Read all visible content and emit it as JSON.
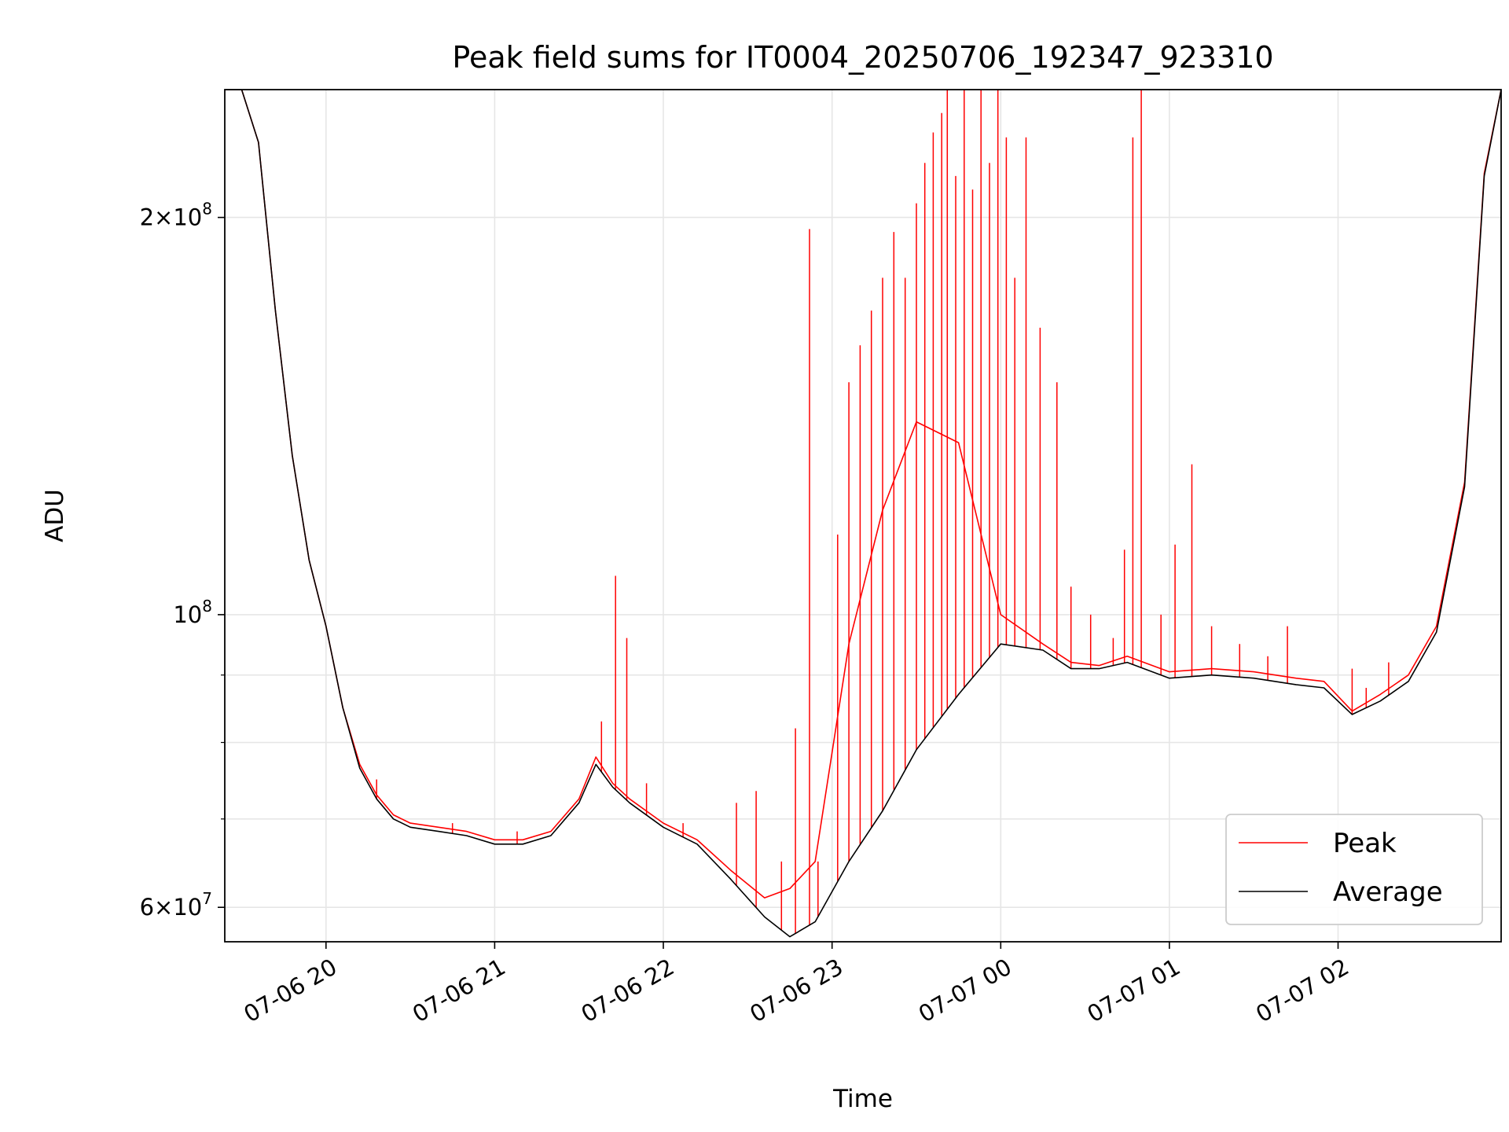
{
  "chart_data": {
    "type": "line",
    "title": "Peak field sums for IT0004_20250706_192347_923310",
    "xlabel": "Time",
    "ylabel": "ADU",
    "yscale": "log",
    "ylim": [
      56500000,
      250000000
    ],
    "xlim": [
      "2025-07-06 19:24",
      "2025-07-07 02:58"
    ],
    "grid": true,
    "legend_position": "lower-right",
    "x_ticks": [
      {
        "value": "2025-07-06 20:00",
        "label": "07-06 20"
      },
      {
        "value": "2025-07-06 21:00",
        "label": "07-06 21"
      },
      {
        "value": "2025-07-06 22:00",
        "label": "07-06 22"
      },
      {
        "value": "2025-07-06 23:00",
        "label": "07-06 23"
      },
      {
        "value": "2025-07-07 00:00",
        "label": "07-07 00"
      },
      {
        "value": "2025-07-07 01:00",
        "label": "07-07 01"
      },
      {
        "value": "2025-07-07 02:00",
        "label": "07-07 02"
      }
    ],
    "y_major_ticks": [
      {
        "value": 60000000,
        "mantissa": "6",
        "exponent": "7"
      },
      {
        "value": 100000000,
        "mantissa": "",
        "exponent": "8"
      },
      {
        "value": 200000000,
        "mantissa": "2",
        "exponent": "8"
      }
    ],
    "y_minor_gridlines": [
      70000000,
      80000000,
      90000000
    ],
    "x": [
      "2025-07-06 19:24",
      "2025-07-06 19:30",
      "2025-07-06 19:36",
      "2025-07-06 19:42",
      "2025-07-06 19:48",
      "2025-07-06 19:54",
      "2025-07-06 20:00",
      "2025-07-06 20:06",
      "2025-07-06 20:12",
      "2025-07-06 20:18",
      "2025-07-06 20:24",
      "2025-07-06 20:30",
      "2025-07-06 20:40",
      "2025-07-06 20:50",
      "2025-07-06 21:00",
      "2025-07-06 21:10",
      "2025-07-06 21:20",
      "2025-07-06 21:30",
      "2025-07-06 21:36",
      "2025-07-06 21:42",
      "2025-07-06 21:48",
      "2025-07-06 22:00",
      "2025-07-06 22:12",
      "2025-07-06 22:24",
      "2025-07-06 22:36",
      "2025-07-06 22:45",
      "2025-07-06 22:54",
      "2025-07-06 23:06",
      "2025-07-06 23:18",
      "2025-07-06 23:30",
      "2025-07-06 23:45",
      "2025-07-07 00:00",
      "2025-07-07 00:15",
      "2025-07-07 00:25",
      "2025-07-07 00:35",
      "2025-07-07 00:45",
      "2025-07-07 01:00",
      "2025-07-07 01:15",
      "2025-07-07 01:30",
      "2025-07-07 01:45",
      "2025-07-07 01:55",
      "2025-07-07 02:05",
      "2025-07-07 02:15",
      "2025-07-07 02:25",
      "2025-07-07 02:35",
      "2025-07-07 02:45",
      "2025-07-07 02:52",
      "2025-07-07 02:58"
    ],
    "series": [
      {
        "name": "Average",
        "color": "#000000",
        "values": [
          250000000,
          250000000,
          228000000,
          170000000,
          132000000,
          110000000,
          98000000,
          85000000,
          76500000,
          72500000,
          70000000,
          69000000,
          68500000,
          68000000,
          67000000,
          67000000,
          68000000,
          72000000,
          77000000,
          74000000,
          72000000,
          69000000,
          67000000,
          63000000,
          59000000,
          57000000,
          58500000,
          65000000,
          71000000,
          79000000,
          87000000,
          95000000,
          94000000,
          91000000,
          91000000,
          92000000,
          89500000,
          90000000,
          89500000,
          88500000,
          88000000,
          84000000,
          86000000,
          89000000,
          97000000,
          125000000,
          215000000,
          250000000
        ]
      },
      {
        "name": "Peak",
        "color": "#ff0000",
        "values": [
          250000000,
          250000000,
          228000000,
          170000000,
          132000000,
          110000000,
          98000000,
          85000000,
          77000000,
          73000000,
          70500000,
          69500000,
          69000000,
          68500000,
          67500000,
          67500000,
          68500000,
          72500000,
          78000000,
          74500000,
          72500000,
          69500000,
          67500000,
          64000000,
          61000000,
          62000000,
          65000000,
          95000000,
          120000000,
          140000000,
          135000000,
          100000000,
          95000000,
          92000000,
          91500000,
          93000000,
          90500000,
          91000000,
          90500000,
          89500000,
          89000000,
          84500000,
          87000000,
          90000000,
          98000000,
          126000000,
          216000000,
          250000000
        ]
      }
    ],
    "peak_spikes": [
      [
        "2025-07-06 20:18",
        75000000
      ],
      [
        "2025-07-06 20:45",
        69500000
      ],
      [
        "2025-07-06 21:08",
        68500000
      ],
      [
        "2025-07-06 21:38",
        83000000
      ],
      [
        "2025-07-06 21:43",
        107000000
      ],
      [
        "2025-07-06 21:47",
        96000000
      ],
      [
        "2025-07-06 21:54",
        74500000
      ],
      [
        "2025-07-06 22:07",
        69500000
      ],
      [
        "2025-07-06 22:26",
        72000000
      ],
      [
        "2025-07-06 22:33",
        73500000
      ],
      [
        "2025-07-06 22:42",
        65000000
      ],
      [
        "2025-07-06 22:47",
        82000000
      ],
      [
        "2025-07-06 22:52",
        196000000
      ],
      [
        "2025-07-06 22:55",
        65000000
      ],
      [
        "2025-07-06 23:02",
        115000000
      ],
      [
        "2025-07-06 23:06",
        150000000
      ],
      [
        "2025-07-06 23:10",
        160000000
      ],
      [
        "2025-07-06 23:14",
        170000000
      ],
      [
        "2025-07-06 23:18",
        180000000
      ],
      [
        "2025-07-06 23:22",
        195000000
      ],
      [
        "2025-07-06 23:26",
        180000000
      ],
      [
        "2025-07-06 23:30",
        205000000
      ],
      [
        "2025-07-06 23:33",
        220000000
      ],
      [
        "2025-07-06 23:36",
        232000000
      ],
      [
        "2025-07-06 23:39",
        240000000
      ],
      [
        "2025-07-06 23:41",
        250000000
      ],
      [
        "2025-07-06 23:44",
        215000000
      ],
      [
        "2025-07-06 23:47",
        250000000
      ],
      [
        "2025-07-06 23:50",
        210000000
      ],
      [
        "2025-07-06 23:53",
        250000000
      ],
      [
        "2025-07-06 23:56",
        220000000
      ],
      [
        "2025-07-06 23:59",
        250000000
      ],
      [
        "2025-07-07 00:02",
        230000000
      ],
      [
        "2025-07-07 00:05",
        180000000
      ],
      [
        "2025-07-07 00:09",
        230000000
      ],
      [
        "2025-07-07 00:14",
        165000000
      ],
      [
        "2025-07-07 00:20",
        150000000
      ],
      [
        "2025-07-07 00:25",
        105000000
      ],
      [
        "2025-07-07 00:32",
        100000000
      ],
      [
        "2025-07-07 00:40",
        96000000
      ],
      [
        "2025-07-07 00:44",
        112000000
      ],
      [
        "2025-07-07 00:47",
        230000000
      ],
      [
        "2025-07-07 00:50",
        250000000
      ],
      [
        "2025-07-07 00:57",
        100000000
      ],
      [
        "2025-07-07 01:02",
        113000000
      ],
      [
        "2025-07-07 01:08",
        130000000
      ],
      [
        "2025-07-07 01:15",
        98000000
      ],
      [
        "2025-07-07 01:25",
        95000000
      ],
      [
        "2025-07-07 01:35",
        93000000
      ],
      [
        "2025-07-07 01:42",
        98000000
      ],
      [
        "2025-07-07 02:05",
        91000000
      ],
      [
        "2025-07-07 02:10",
        88000000
      ],
      [
        "2025-07-07 02:18",
        92000000
      ]
    ]
  }
}
